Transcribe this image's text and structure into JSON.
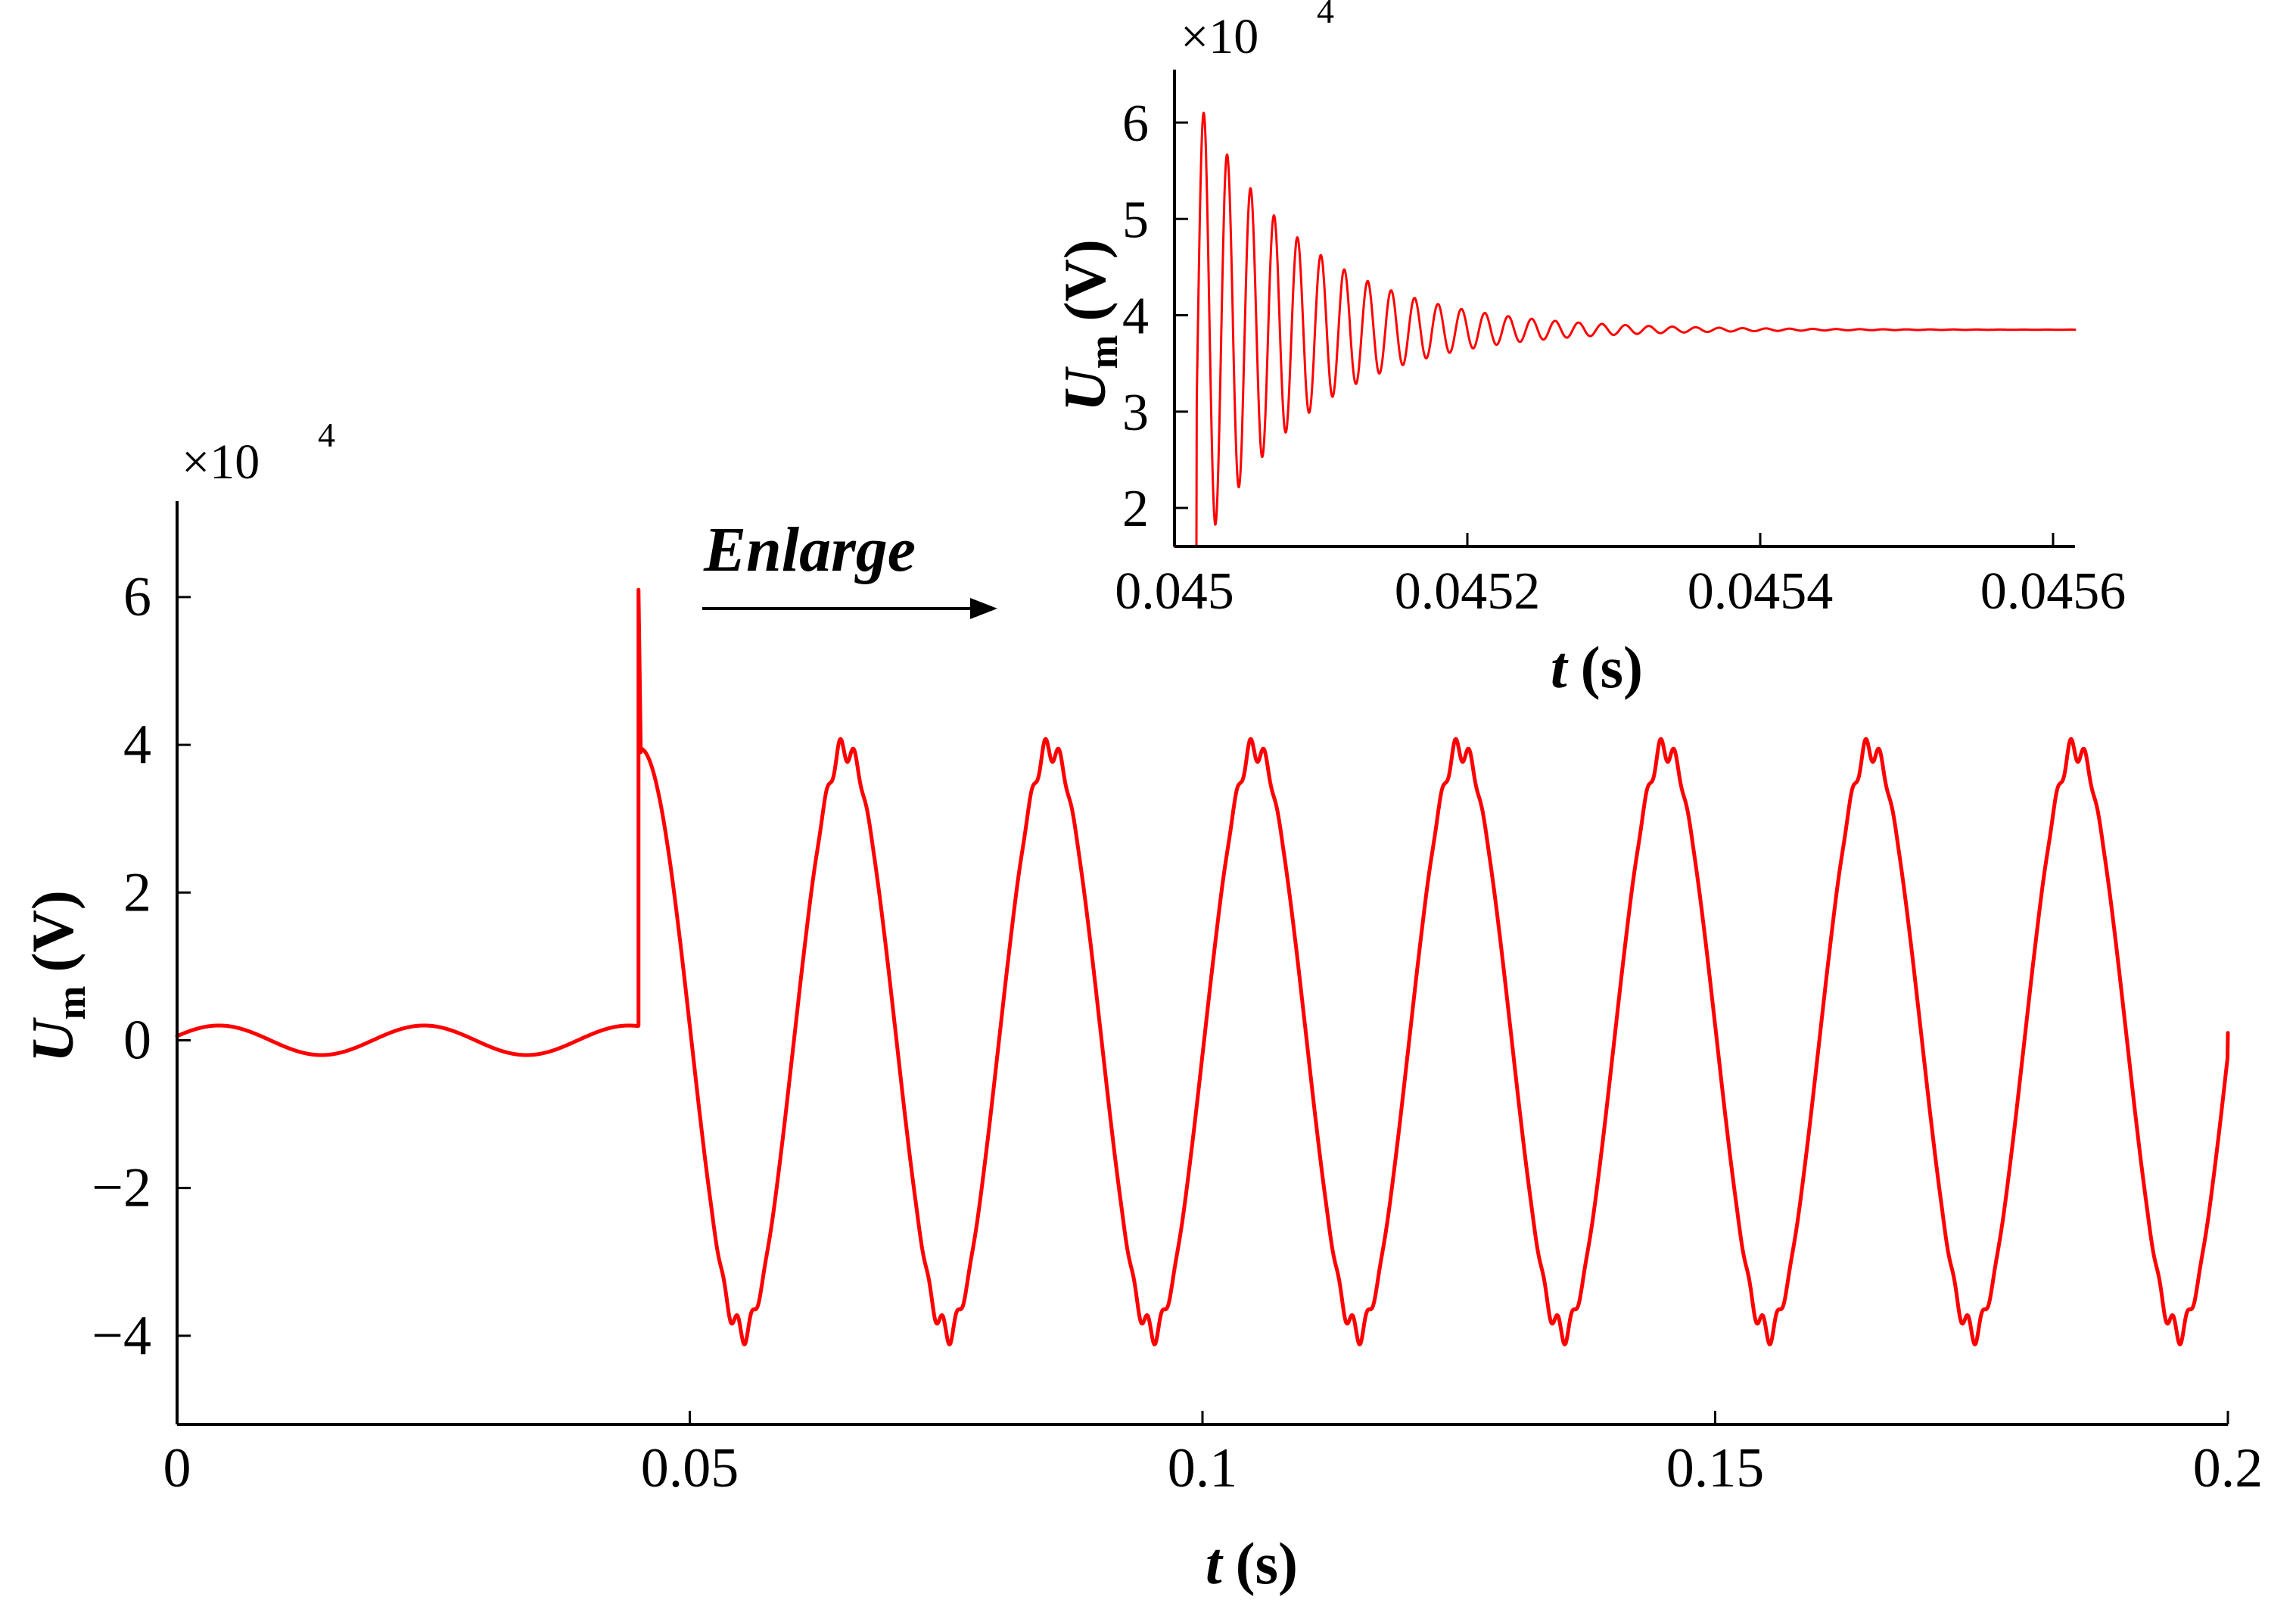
{
  "colors": {
    "series": "#ff0000",
    "axis": "#000000",
    "background": "#ffffff"
  },
  "chart_data": [
    {
      "id": "main",
      "type": "line",
      "title": "",
      "xlabel": {
        "italic": "t",
        "unit": "(s)"
      },
      "ylabel": {
        "italic": "U",
        "sub": "m",
        "unit": "(V)"
      },
      "exponent": {
        "times": "×10",
        "power": "4"
      },
      "xlim": [
        0,
        0.2
      ],
      "ylim": [
        -5.2,
        7.3
      ],
      "xticks": [
        0,
        0.05,
        0.1,
        0.15,
        0.2
      ],
      "xtick_labels": [
        "0",
        "0.05",
        "0.1",
        "0.15",
        "0.2"
      ],
      "yticks": [
        -4,
        -2,
        0,
        2,
        4,
        6
      ],
      "ytick_labels": [
        "−4",
        "−2",
        "0",
        "2",
        "4",
        "6"
      ],
      "series": [
        {
          "name": "Um",
          "description": "Pre-fault: small sinusoid amplitude ~0.2 (×10^4 V), period 0.02 s. Spike to ~6.1 at t≈0.045 s, then 50 Hz sinusoid amplitude ~4 with high-frequency ripple near peaks/troughs.",
          "pre_fault_amplitude": 0.2,
          "fault_time": 0.045,
          "spike_peak": 6.1,
          "post_fault_amplitude": 3.95,
          "period": 0.02,
          "end_value": 0.1
        }
      ]
    },
    {
      "id": "inset",
      "type": "line",
      "title": "",
      "xlabel": {
        "italic": "t",
        "unit": "(s)"
      },
      "ylabel": {
        "italic": "U",
        "sub": "m",
        "unit": "(V)"
      },
      "exponent": {
        "times": "×10",
        "power": "4"
      },
      "xlim": [
        0.045,
        0.045615
      ],
      "ylim": [
        1.6,
        6.55
      ],
      "xticks": [
        0.045,
        0.0452,
        0.0454,
        0.0456
      ],
      "xtick_labels": [
        "0.045",
        "0.0452",
        "0.0454",
        "0.0456"
      ],
      "yticks": [
        2,
        3,
        4,
        5,
        6
      ],
      "ytick_labels": [
        "2",
        "3",
        "4",
        "5",
        "6"
      ],
      "series": [
        {
          "name": "Um (enlarged)",
          "description": "Damped oscillation settling to ~3.85 (×10^4 V); first peak ~6.1 at t≈0.04502 s, oscillation period ~0.000016 s.",
          "first_peak": 6.1,
          "settle_value": 3.85,
          "osc_period": 1.6e-05
        }
      ]
    }
  ],
  "annotation": {
    "text": "Enlarge"
  }
}
